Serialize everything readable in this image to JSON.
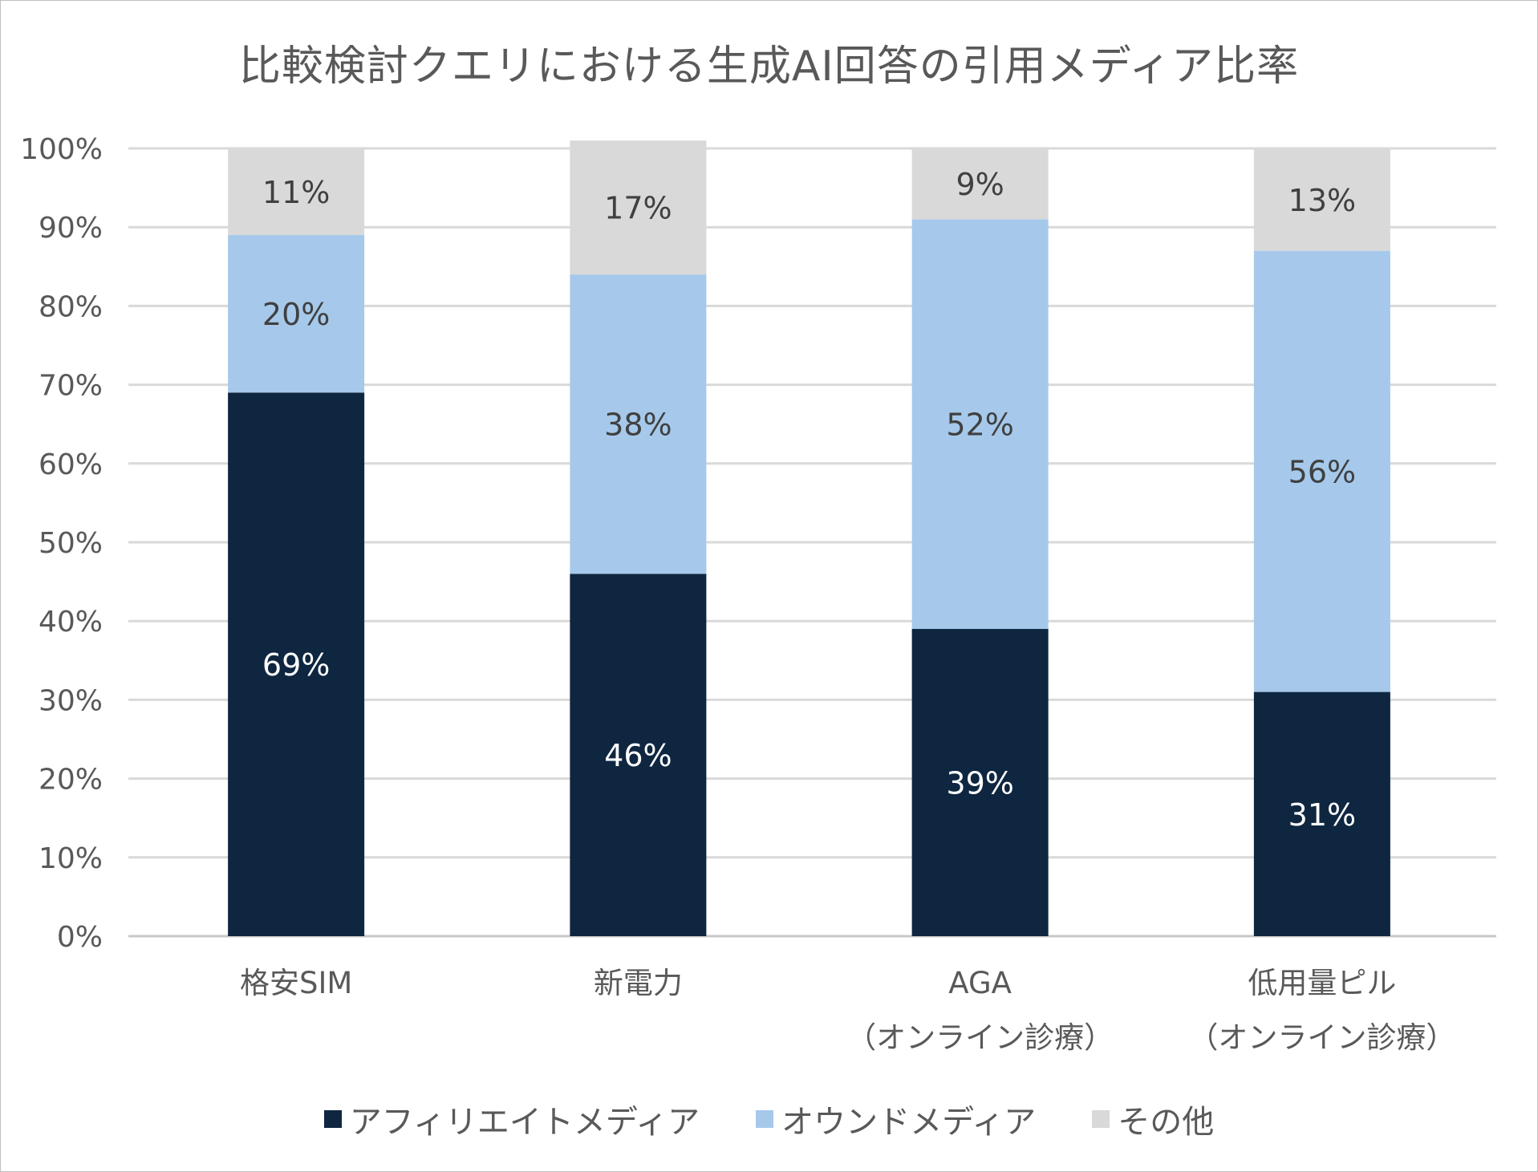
{
  "chart_data": {
    "type": "bar",
    "stacked": true,
    "title": "比較検討クエリにおける生成AI回答の引用メディア比率",
    "categories": [
      [
        "格安SIM"
      ],
      [
        "新電力"
      ],
      [
        "AGA",
        "（オンライン診療）"
      ],
      [
        "低用量ピル",
        "（オンライン診療）"
      ]
    ],
    "series": [
      {
        "name": "アフィリエイトメディア",
        "color": "#0e2640",
        "label_color": "#ffffff",
        "values": [
          69,
          46,
          39,
          31
        ],
        "labels": [
          "69%",
          "46%",
          "39%",
          "31%"
        ]
      },
      {
        "name": "オウンドメディア",
        "color": "#a6c9eb",
        "label_color": "#404040",
        "values": [
          20,
          38,
          52,
          56
        ],
        "labels": [
          "20%",
          "38%",
          "52%",
          "56%"
        ]
      },
      {
        "name": "その他",
        "color": "#d9d9d9",
        "label_color": "#404040",
        "values": [
          11,
          17,
          9,
          13
        ],
        "labels": [
          "11%",
          "17%",
          "9%",
          "13%"
        ]
      }
    ],
    "ylim": [
      0,
      100
    ],
    "yticks": [
      "0%",
      "10%",
      "20%",
      "30%",
      "40%",
      "50%",
      "60%",
      "70%",
      "80%",
      "90%",
      "100%"
    ],
    "grid": true,
    "legend_position": "bottom"
  }
}
